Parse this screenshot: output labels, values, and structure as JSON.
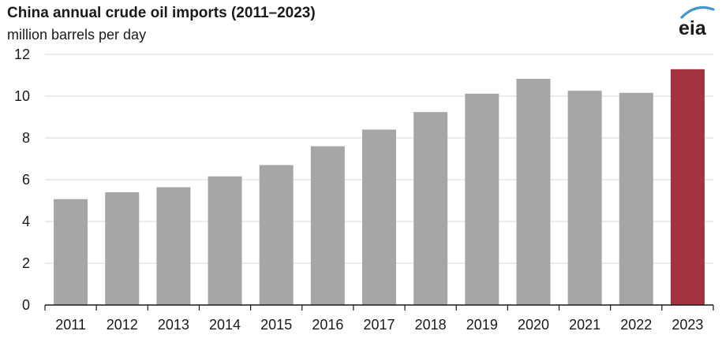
{
  "header": {
    "title": "China annual crude oil imports (2011–2023)",
    "subtitle": "million barrels per day",
    "logo_text": "eia"
  },
  "colors": {
    "bar": "#a6a6a6",
    "highlight_bar": "#a33340",
    "grid": "#d9d9d9",
    "axis": "#1a1a1a",
    "text": "#1a1a1a",
    "logo_arc": "#3f98c9"
  },
  "chart_data": {
    "type": "bar",
    "title": "China annual crude oil imports (2011–2023)",
    "subtitle": "million barrels per day",
    "categories": [
      "2011",
      "2012",
      "2013",
      "2014",
      "2015",
      "2016",
      "2017",
      "2018",
      "2019",
      "2020",
      "2021",
      "2022",
      "2023"
    ],
    "values": [
      5.07,
      5.4,
      5.64,
      6.16,
      6.7,
      7.6,
      8.4,
      9.24,
      10.12,
      10.83,
      10.26,
      10.16,
      11.29
    ],
    "highlight_index": 12,
    "ylim": [
      0,
      12
    ],
    "yticks": [
      "0",
      "2",
      "4",
      "6",
      "8",
      "10",
      "12"
    ],
    "grid": true,
    "legend": false,
    "xlabel": "",
    "ylabel": ""
  }
}
